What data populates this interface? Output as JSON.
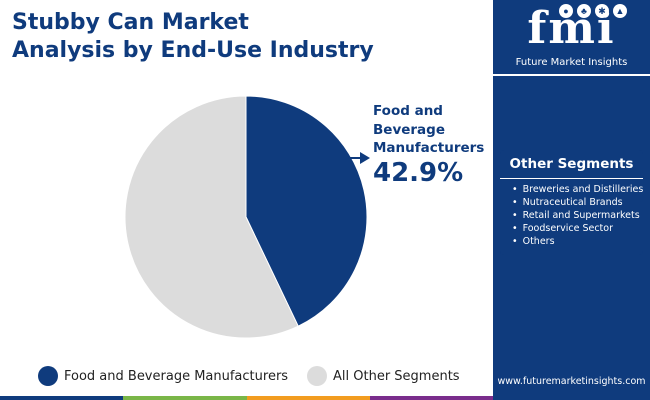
{
  "title_lines": [
    "Stubby Can Market",
    "Analysis by End-Use Industry"
  ],
  "chart_data": {
    "type": "pie",
    "title": "Stubby Can Market Analysis by End-Use Industry",
    "slices": [
      {
        "label": "Food and Beverage Manufacturers",
        "value": 42.9,
        "color": "#0f3b7d"
      },
      {
        "label": "All Other Segments",
        "value": 57.1,
        "color": "#dcdcdc"
      }
    ],
    "start_angle_deg": 0,
    "direction": "clockwise",
    "legend_position": "bottom"
  },
  "callout": {
    "label_lines": [
      "Food and",
      "Beverage",
      "Manufacturers"
    ],
    "value": "42.9%"
  },
  "legend": [
    {
      "label": "Food and Beverage Manufacturers",
      "color": "#0f3b7d"
    },
    {
      "label": "All Other Segments",
      "color": "#dcdcdc"
    }
  ],
  "sidebar": {
    "logo_text": "fmi",
    "logo_subtitle": "Future Market Insights",
    "segments_title": "Other Segments",
    "segments": [
      "Breweries and Distilleries",
      "Nutraceutical Brands",
      "Retail and Supermarkets",
      "Foodservice Sector",
      "Others"
    ],
    "website": "www.futuremarketinsights.com"
  },
  "colors": {
    "brand_navy": "#0f3b7d",
    "other_gray": "#dcdcdc",
    "bar_green": "#7ab648",
    "bar_orange": "#f29c1f",
    "bar_purple": "#7a2d8c"
  }
}
